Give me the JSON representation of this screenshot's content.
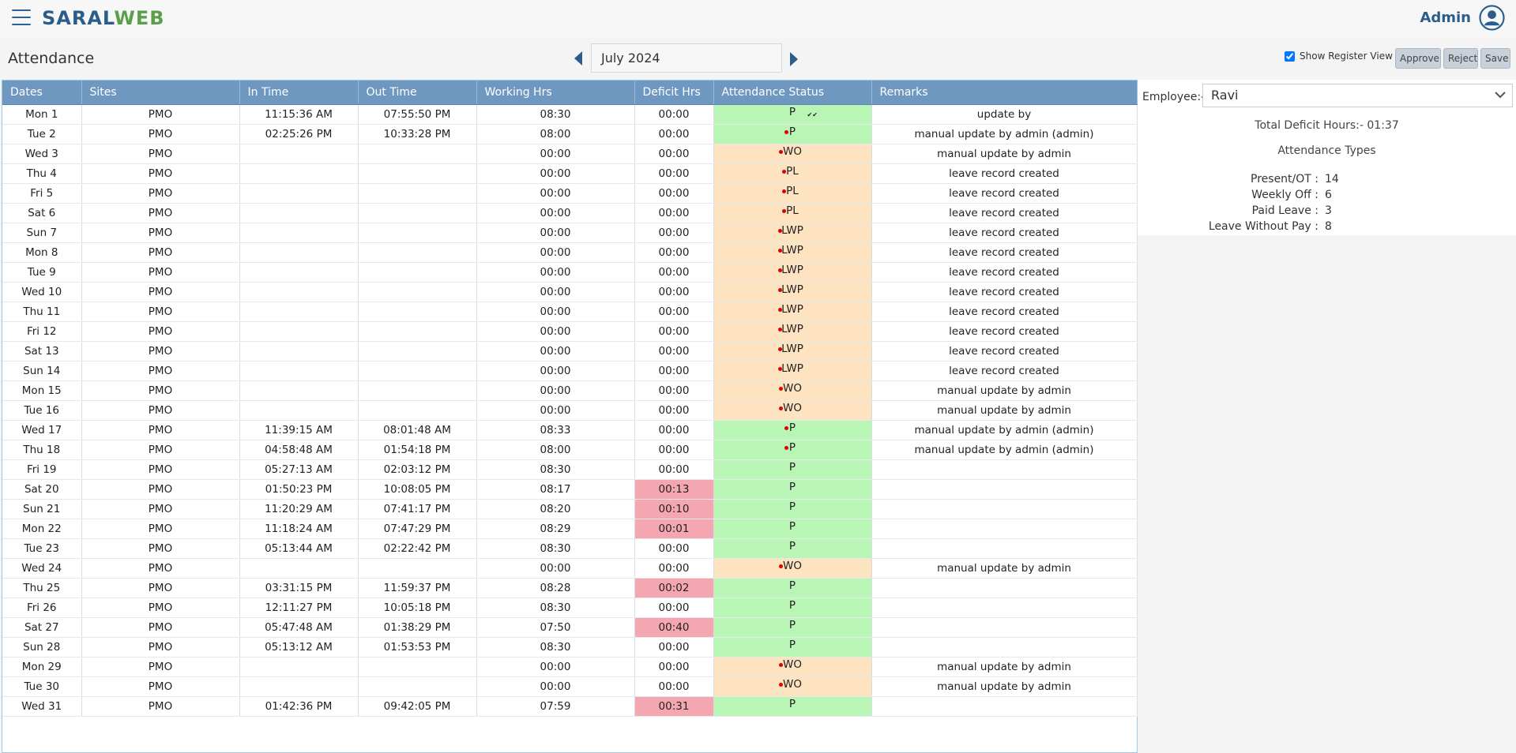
{
  "app": {
    "logo_part1": "SARAL",
    "logo_part2": "WEB",
    "user_name": "Admin"
  },
  "page": {
    "title": "Attendance",
    "month": "July 2024"
  },
  "toolbar": {
    "show_register_view": "Show Register View",
    "approve": "Approve",
    "reject": "Reject",
    "save": "Save"
  },
  "columns": [
    "Dates",
    "Sites",
    "In Time",
    "Out Time",
    "Working Hrs",
    "Deficit Hrs",
    "Attendance Status",
    "Remarks"
  ],
  "rows": [
    {
      "date": "Mon 1",
      "site": "PMO",
      "in": "11:15:36 AM",
      "out": "07:55:50 PM",
      "work": "08:30",
      "deficit": "00:00",
      "deficit_flag": false,
      "status": "P",
      "status_color": "green",
      "dot": false,
      "tick": true,
      "remarks": "update by"
    },
    {
      "date": "Tue 2",
      "site": "PMO",
      "in": "02:25:26 PM",
      "out": "10:33:28 PM",
      "work": "08:00",
      "deficit": "00:00",
      "deficit_flag": false,
      "status": "P",
      "status_color": "green",
      "dot": true,
      "tick": false,
      "remarks": "manual update by admin (admin)"
    },
    {
      "date": "Wed 3",
      "site": "PMO",
      "in": "",
      "out": "",
      "work": "00:00",
      "deficit": "00:00",
      "deficit_flag": false,
      "status": "WO",
      "status_color": "orange",
      "dot": true,
      "tick": false,
      "remarks": "manual update by admin"
    },
    {
      "date": "Thu 4",
      "site": "PMO",
      "in": "",
      "out": "",
      "work": "00:00",
      "deficit": "00:00",
      "deficit_flag": false,
      "status": "PL",
      "status_color": "orange",
      "dot": true,
      "tick": false,
      "remarks": "leave record created"
    },
    {
      "date": "Fri 5",
      "site": "PMO",
      "in": "",
      "out": "",
      "work": "00:00",
      "deficit": "00:00",
      "deficit_flag": false,
      "status": "PL",
      "status_color": "orange",
      "dot": true,
      "tick": false,
      "remarks": "leave record created"
    },
    {
      "date": "Sat 6",
      "site": "PMO",
      "in": "",
      "out": "",
      "work": "00:00",
      "deficit": "00:00",
      "deficit_flag": false,
      "status": "PL",
      "status_color": "orange",
      "dot": true,
      "tick": false,
      "remarks": "leave record created"
    },
    {
      "date": "Sun 7",
      "site": "PMO",
      "in": "",
      "out": "",
      "work": "00:00",
      "deficit": "00:00",
      "deficit_flag": false,
      "status": "LWP",
      "status_color": "orange",
      "dot": true,
      "tick": false,
      "remarks": "leave record created"
    },
    {
      "date": "Mon 8",
      "site": "PMO",
      "in": "",
      "out": "",
      "work": "00:00",
      "deficit": "00:00",
      "deficit_flag": false,
      "status": "LWP",
      "status_color": "orange",
      "dot": true,
      "tick": false,
      "remarks": "leave record created"
    },
    {
      "date": "Tue 9",
      "site": "PMO",
      "in": "",
      "out": "",
      "work": "00:00",
      "deficit": "00:00",
      "deficit_flag": false,
      "status": "LWP",
      "status_color": "orange",
      "dot": true,
      "tick": false,
      "remarks": "leave record created"
    },
    {
      "date": "Wed 10",
      "site": "PMO",
      "in": "",
      "out": "",
      "work": "00:00",
      "deficit": "00:00",
      "deficit_flag": false,
      "status": "LWP",
      "status_color": "orange",
      "dot": true,
      "tick": false,
      "remarks": "leave record created"
    },
    {
      "date": "Thu 11",
      "site": "PMO",
      "in": "",
      "out": "",
      "work": "00:00",
      "deficit": "00:00",
      "deficit_flag": false,
      "status": "LWP",
      "status_color": "orange",
      "dot": true,
      "tick": false,
      "remarks": "leave record created"
    },
    {
      "date": "Fri 12",
      "site": "PMO",
      "in": "",
      "out": "",
      "work": "00:00",
      "deficit": "00:00",
      "deficit_flag": false,
      "status": "LWP",
      "status_color": "orange",
      "dot": true,
      "tick": false,
      "remarks": "leave record created"
    },
    {
      "date": "Sat 13",
      "site": "PMO",
      "in": "",
      "out": "",
      "work": "00:00",
      "deficit": "00:00",
      "deficit_flag": false,
      "status": "LWP",
      "status_color": "orange",
      "dot": true,
      "tick": false,
      "remarks": "leave record created"
    },
    {
      "date": "Sun 14",
      "site": "PMO",
      "in": "",
      "out": "",
      "work": "00:00",
      "deficit": "00:00",
      "deficit_flag": false,
      "status": "LWP",
      "status_color": "orange",
      "dot": true,
      "tick": false,
      "remarks": "leave record created"
    },
    {
      "date": "Mon 15",
      "site": "PMO",
      "in": "",
      "out": "",
      "work": "00:00",
      "deficit": "00:00",
      "deficit_flag": false,
      "status": "WO",
      "status_color": "orange",
      "dot": true,
      "tick": false,
      "remarks": "manual update by admin"
    },
    {
      "date": "Tue 16",
      "site": "PMO",
      "in": "",
      "out": "",
      "work": "00:00",
      "deficit": "00:00",
      "deficit_flag": false,
      "status": "WO",
      "status_color": "orange",
      "dot": true,
      "tick": false,
      "remarks": "manual update by admin"
    },
    {
      "date": "Wed 17",
      "site": "PMO",
      "in": "11:39:15 AM",
      "out": "08:01:48 AM",
      "work": "08:33",
      "deficit": "00:00",
      "deficit_flag": false,
      "status": "P",
      "status_color": "green",
      "dot": true,
      "tick": false,
      "remarks": "manual update by admin (admin)"
    },
    {
      "date": "Thu 18",
      "site": "PMO",
      "in": "04:58:48 AM",
      "out": "01:54:18 PM",
      "work": "08:00",
      "deficit": "00:00",
      "deficit_flag": false,
      "status": "P",
      "status_color": "green",
      "dot": true,
      "tick": false,
      "remarks": "manual update by admin (admin)"
    },
    {
      "date": "Fri 19",
      "site": "PMO",
      "in": "05:27:13 AM",
      "out": "02:03:12 PM",
      "work": "08:30",
      "deficit": "00:00",
      "deficit_flag": false,
      "status": "P",
      "status_color": "green",
      "dot": false,
      "tick": false,
      "remarks": ""
    },
    {
      "date": "Sat 20",
      "site": "PMO",
      "in": "01:50:23 PM",
      "out": "10:08:05 PM",
      "work": "08:17",
      "deficit": "00:13",
      "deficit_flag": true,
      "status": "P",
      "status_color": "green",
      "dot": false,
      "tick": false,
      "remarks": ""
    },
    {
      "date": "Sun 21",
      "site": "PMO",
      "in": "11:20:29 AM",
      "out": "07:41:17 PM",
      "work": "08:20",
      "deficit": "00:10",
      "deficit_flag": true,
      "status": "P",
      "status_color": "green",
      "dot": false,
      "tick": false,
      "remarks": ""
    },
    {
      "date": "Mon 22",
      "site": "PMO",
      "in": "11:18:24 AM",
      "out": "07:47:29 PM",
      "work": "08:29",
      "deficit": "00:01",
      "deficit_flag": true,
      "status": "P",
      "status_color": "green",
      "dot": false,
      "tick": false,
      "remarks": ""
    },
    {
      "date": "Tue 23",
      "site": "PMO",
      "in": "05:13:44 AM",
      "out": "02:22:42 PM",
      "work": "08:30",
      "deficit": "00:00",
      "deficit_flag": false,
      "status": "P",
      "status_color": "green",
      "dot": false,
      "tick": false,
      "remarks": ""
    },
    {
      "date": "Wed 24",
      "site": "PMO",
      "in": "",
      "out": "",
      "work": "00:00",
      "deficit": "00:00",
      "deficit_flag": false,
      "status": "WO",
      "status_color": "orange",
      "dot": true,
      "tick": false,
      "remarks": "manual update by admin"
    },
    {
      "date": "Thu 25",
      "site": "PMO",
      "in": "03:31:15 PM",
      "out": "11:59:37 PM",
      "work": "08:28",
      "deficit": "00:02",
      "deficit_flag": true,
      "status": "P",
      "status_color": "green",
      "dot": false,
      "tick": false,
      "remarks": ""
    },
    {
      "date": "Fri 26",
      "site": "PMO",
      "in": "12:11:27 PM",
      "out": "10:05:18 PM",
      "work": "08:30",
      "deficit": "00:00",
      "deficit_flag": false,
      "status": "P",
      "status_color": "green",
      "dot": false,
      "tick": false,
      "remarks": ""
    },
    {
      "date": "Sat 27",
      "site": "PMO",
      "in": "05:47:48 AM",
      "out": "01:38:29 PM",
      "work": "07:50",
      "deficit": "00:40",
      "deficit_flag": true,
      "status": "P",
      "status_color": "green",
      "dot": false,
      "tick": false,
      "remarks": ""
    },
    {
      "date": "Sun 28",
      "site": "PMO",
      "in": "05:13:12 AM",
      "out": "01:53:53 PM",
      "work": "08:30",
      "deficit": "00:00",
      "deficit_flag": false,
      "status": "P",
      "status_color": "green",
      "dot": false,
      "tick": false,
      "remarks": ""
    },
    {
      "date": "Mon 29",
      "site": "PMO",
      "in": "",
      "out": "",
      "work": "00:00",
      "deficit": "00:00",
      "deficit_flag": false,
      "status": "WO",
      "status_color": "orange",
      "dot": true,
      "tick": false,
      "remarks": "manual update by admin"
    },
    {
      "date": "Tue 30",
      "site": "PMO",
      "in": "",
      "out": "",
      "work": "00:00",
      "deficit": "00:00",
      "deficit_flag": false,
      "status": "WO",
      "status_color": "orange",
      "dot": true,
      "tick": false,
      "remarks": "manual update by admin"
    },
    {
      "date": "Wed 31",
      "site": "PMO",
      "in": "01:42:36 PM",
      "out": "09:42:05 PM",
      "work": "07:59",
      "deficit": "00:31",
      "deficit_flag": true,
      "status": "P",
      "status_color": "green",
      "dot": false,
      "tick": false,
      "remarks": ""
    }
  ],
  "side": {
    "employee_label": "Employee:-",
    "employee_value": "Ravi",
    "total_deficit": "Total Deficit Hours:- 01:37",
    "types_title": "Attendance Types",
    "types": [
      {
        "label": "Present/OT :",
        "value": "14"
      },
      {
        "label": "Weekly Off :",
        "value": "6"
      },
      {
        "label": "Paid Leave :",
        "value": "3"
      },
      {
        "label": "Leave Without Pay :",
        "value": "8"
      }
    ]
  },
  "colors": {
    "header_bg": "#6f98c0",
    "present": "#b9f5b5",
    "off_leave": "#fde3bf",
    "deficit": "#f4a7b0",
    "brand_blue": "#2b5d8b",
    "brand_green": "#5aa04a"
  },
  "icons": [
    "menu-icon",
    "user-avatar-icon",
    "prev-month-icon",
    "next-month-icon",
    "chevron-down-icon",
    "status-dot-icon",
    "double-check-icon"
  ]
}
